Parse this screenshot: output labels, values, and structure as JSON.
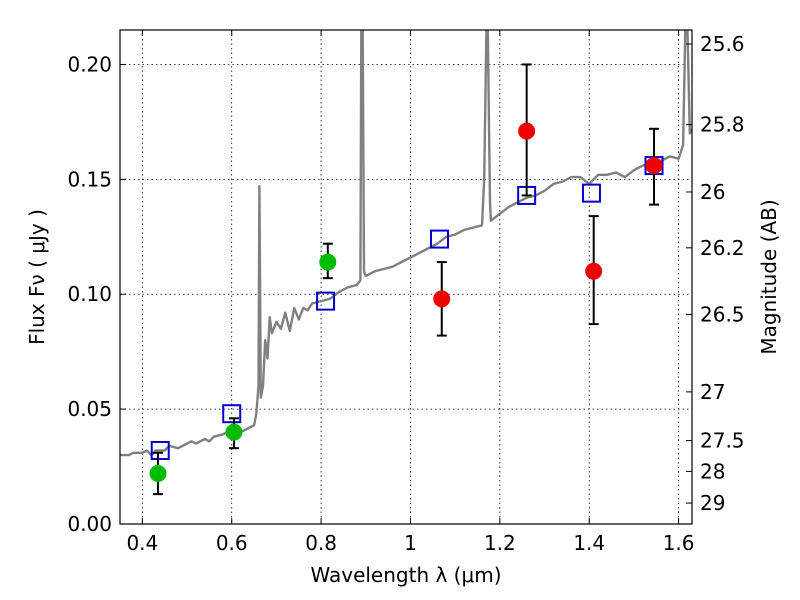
{
  "chart_data": {
    "type": "scatter",
    "xlabel": "Wavelength  λ (μm)",
    "ylabel": "Flux  Fν  ( μJy )",
    "y2label": "Magnitude (AB)",
    "xlim": [
      0.35,
      1.63
    ],
    "ylim": [
      0.0,
      0.215
    ],
    "grid": true,
    "x_ticks": [
      0.4,
      0.6,
      0.8,
      1.0,
      1.2,
      1.4,
      1.6
    ],
    "x_tick_labels": [
      "0.4",
      "0.6",
      "0.8",
      "1",
      "1.2",
      "1.4",
      "1.6"
    ],
    "y_ticks": [
      0.0,
      0.05,
      0.1,
      0.15,
      0.2
    ],
    "y_tick_labels": [
      "0.00",
      "0.05",
      "0.10",
      "0.15",
      "0.20"
    ],
    "mag_ticks": [
      {
        "label": "25.6",
        "flux": 0.2089
      },
      {
        "label": "25.8",
        "flux": 0.1738
      },
      {
        "label": "26",
        "flux": 0.1445
      },
      {
        "label": "26.2",
        "flux": 0.1202
      },
      {
        "label": "26.5",
        "flux": 0.0912
      },
      {
        "label": "27",
        "flux": 0.0575
      },
      {
        "label": "27.5",
        "flux": 0.0363
      },
      {
        "label": "28",
        "flux": 0.0229
      },
      {
        "label": "29",
        "flux": 0.0091
      }
    ],
    "series": [
      {
        "kind": "line",
        "color": "#808080",
        "points": [
          [
            0.35,
            0.03
          ],
          [
            0.37,
            0.03
          ],
          [
            0.38,
            0.031
          ],
          [
            0.4,
            0.031
          ],
          [
            0.41,
            0.032
          ],
          [
            0.42,
            0.03
          ],
          [
            0.43,
            0.032
          ],
          [
            0.45,
            0.032
          ],
          [
            0.46,
            0.034
          ],
          [
            0.48,
            0.033
          ],
          [
            0.5,
            0.035
          ],
          [
            0.51,
            0.036
          ],
          [
            0.52,
            0.035
          ],
          [
            0.54,
            0.037
          ],
          [
            0.55,
            0.036
          ],
          [
            0.56,
            0.038
          ],
          [
            0.58,
            0.039
          ],
          [
            0.6,
            0.041
          ],
          [
            0.61,
            0.041
          ],
          [
            0.62,
            0.04
          ],
          [
            0.64,
            0.042
          ],
          [
            0.65,
            0.043
          ],
          [
            0.655,
            0.048
          ],
          [
            0.66,
            0.06
          ],
          [
            0.662,
            0.147
          ],
          [
            0.665,
            0.055
          ],
          [
            0.67,
            0.06
          ],
          [
            0.675,
            0.08
          ],
          [
            0.68,
            0.072
          ],
          [
            0.685,
            0.09
          ],
          [
            0.69,
            0.083
          ],
          [
            0.7,
            0.088
          ],
          [
            0.71,
            0.085
          ],
          [
            0.72,
            0.092
          ],
          [
            0.73,
            0.084
          ],
          [
            0.74,
            0.094
          ],
          [
            0.75,
            0.089
          ],
          [
            0.76,
            0.094
          ],
          [
            0.77,
            0.093
          ],
          [
            0.78,
            0.096
          ],
          [
            0.8,
            0.097
          ],
          [
            0.82,
            0.098
          ],
          [
            0.84,
            0.101
          ],
          [
            0.86,
            0.103
          ],
          [
            0.88,
            0.104
          ],
          [
            0.888,
            0.106
          ],
          [
            0.89,
            0.215
          ],
          [
            0.893,
            0.215
          ],
          [
            0.896,
            0.11
          ],
          [
            0.9,
            0.108
          ],
          [
            0.92,
            0.11
          ],
          [
            0.94,
            0.111
          ],
          [
            0.96,
            0.112
          ],
          [
            0.98,
            0.114
          ],
          [
            1.0,
            0.116
          ],
          [
            1.02,
            0.118
          ],
          [
            1.04,
            0.12
          ],
          [
            1.06,
            0.122
          ],
          [
            1.08,
            0.125
          ],
          [
            1.1,
            0.126
          ],
          [
            1.12,
            0.128
          ],
          [
            1.14,
            0.129
          ],
          [
            1.16,
            0.13
          ],
          [
            1.165,
            0.15
          ],
          [
            1.17,
            0.215
          ],
          [
            1.173,
            0.215
          ],
          [
            1.178,
            0.14
          ],
          [
            1.18,
            0.132
          ],
          [
            1.2,
            0.135
          ],
          [
            1.22,
            0.138
          ],
          [
            1.24,
            0.14
          ],
          [
            1.26,
            0.142
          ],
          [
            1.28,
            0.143
          ],
          [
            1.3,
            0.145
          ],
          [
            1.32,
            0.148
          ],
          [
            1.34,
            0.149
          ],
          [
            1.36,
            0.151
          ],
          [
            1.38,
            0.151
          ],
          [
            1.4,
            0.148
          ],
          [
            1.42,
            0.152
          ],
          [
            1.44,
            0.152
          ],
          [
            1.46,
            0.153
          ],
          [
            1.48,
            0.151
          ],
          [
            1.5,
            0.154
          ],
          [
            1.52,
            0.156
          ],
          [
            1.54,
            0.157
          ],
          [
            1.56,
            0.158
          ],
          [
            1.58,
            0.16
          ],
          [
            1.6,
            0.159
          ],
          [
            1.61,
            0.165
          ],
          [
            1.615,
            0.215
          ],
          [
            1.62,
            0.215
          ],
          [
            1.625,
            0.17
          ],
          [
            1.63,
            0.172
          ]
        ]
      },
      {
        "kind": "square",
        "color": "#0000cc",
        "points": [
          [
            0.44,
            0.032
          ],
          [
            0.6,
            0.048
          ],
          [
            0.81,
            0.097
          ],
          [
            1.065,
            0.124
          ],
          [
            1.26,
            0.143
          ],
          [
            1.405,
            0.144
          ],
          [
            1.545,
            0.156
          ]
        ]
      },
      {
        "kind": "circle",
        "color": "#00bb00",
        "points": [
          {
            "x": 0.435,
            "y": 0.022,
            "lo": 0.013,
            "hi": 0.031
          },
          {
            "x": 0.605,
            "y": 0.04,
            "lo": 0.033,
            "hi": 0.046
          },
          {
            "x": 0.815,
            "y": 0.114,
            "lo": 0.107,
            "hi": 0.122
          }
        ]
      },
      {
        "kind": "circle",
        "color": "#ee0000",
        "points": [
          {
            "x": 1.07,
            "y": 0.098,
            "lo": 0.082,
            "hi": 0.114
          },
          {
            "x": 1.26,
            "y": 0.171,
            "lo": 0.143,
            "hi": 0.2
          },
          {
            "x": 1.41,
            "y": 0.11,
            "lo": 0.087,
            "hi": 0.134
          },
          {
            "x": 1.545,
            "y": 0.156,
            "lo": 0.139,
            "hi": 0.172
          }
        ]
      }
    ]
  }
}
